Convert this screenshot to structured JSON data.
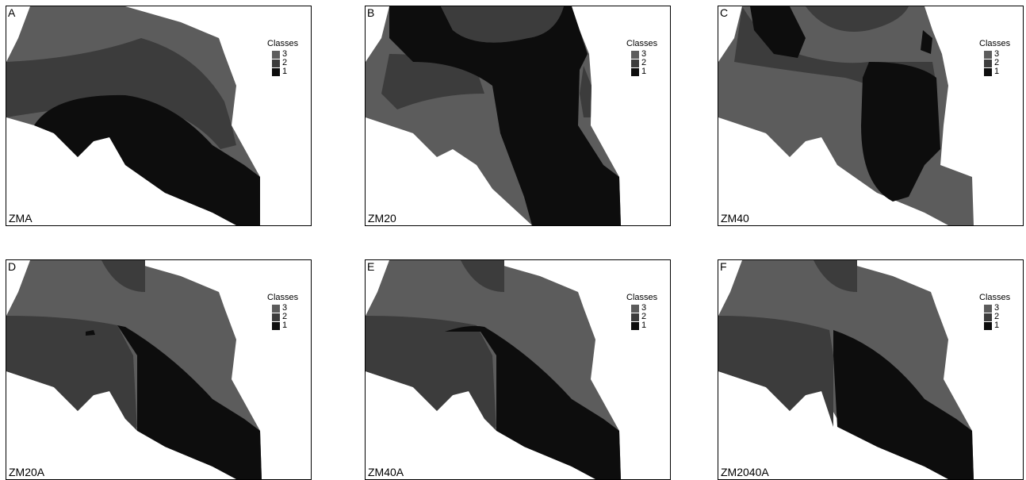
{
  "legend": {
    "title": "Classes",
    "items": [
      {
        "label": "3",
        "color": "#5c5c5c"
      },
      {
        "label": "2",
        "color": "#3c3c3c"
      },
      {
        "label": "1",
        "color": "#0d0d0d"
      }
    ]
  },
  "colors": {
    "class3": "#5c5c5c",
    "class2": "#3c3c3c",
    "class1": "#0d0d0d",
    "background": "#ffffff"
  },
  "panels": [
    {
      "letter": "A",
      "label": "ZMA"
    },
    {
      "letter": "B",
      "label": "ZM20"
    },
    {
      "letter": "C",
      "label": "ZM40"
    },
    {
      "letter": "D",
      "label": "ZM20A"
    },
    {
      "letter": "E",
      "label": "ZM40A"
    },
    {
      "letter": "F",
      "label": "ZM2040A"
    }
  ]
}
